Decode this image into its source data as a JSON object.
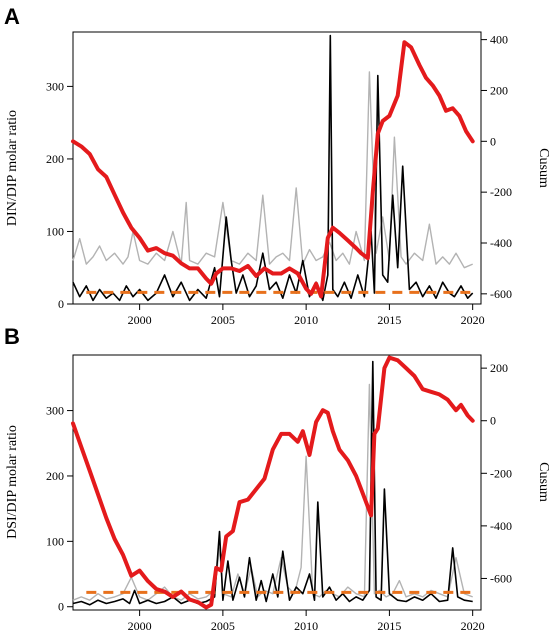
{
  "colors": {
    "cusum": "#e41a1c",
    "ratio_station": "#000000",
    "ratio_alt": "#b3b3b3",
    "redfield": "#e8711c"
  },
  "chart_data": [
    {
      "panel": "A",
      "type": "line",
      "ylabel": "DIN/DIP  molar  ratio",
      "y2label": "Cusum",
      "xlim": [
        1996,
        2020.5
      ],
      "ylim": [
        0,
        375
      ],
      "y2lim": [
        -640,
        430
      ],
      "x_ticks": [
        2000,
        2005,
        2010,
        2015,
        2020
      ],
      "y_ticks": [
        0,
        100,
        200,
        300
      ],
      "y2_ticks": [
        -600,
        -400,
        -200,
        0,
        200,
        400
      ],
      "reference_line": 16,
      "series": [
        {
          "axis": "right",
          "x": [
            1996.0,
            1996.5,
            1997.0,
            1997.5,
            1998.0,
            1998.5,
            1999.0,
            1999.5,
            2000.0,
            2000.5,
            2001.0,
            2001.5,
            2002.0,
            2002.5,
            2003.0,
            2003.5,
            2004.0,
            2004.3,
            2004.6,
            2005.0,
            2005.5,
            2006.0,
            2006.5,
            2007.0,
            2007.5,
            2008.0,
            2008.5,
            2009.0,
            2009.5,
            2010.0,
            2010.3,
            2010.6,
            2010.9,
            2011.3,
            2011.6,
            2012.0,
            2012.5,
            2013.0,
            2013.3,
            2013.7,
            2014.0,
            2014.3,
            2014.6,
            2015.0,
            2015.5,
            2015.9,
            2016.3,
            2016.8,
            2017.2,
            2017.6,
            2018.0,
            2018.4,
            2018.8,
            2019.2,
            2019.6,
            2020.0
          ],
          "y": [
            0,
            -20,
            -50,
            -110,
            -140,
            -210,
            -280,
            -340,
            -380,
            -430,
            -420,
            -440,
            -450,
            -480,
            -500,
            -500,
            -540,
            -560,
            -520,
            -500,
            -500,
            -510,
            -490,
            -530,
            -500,
            -520,
            -520,
            -500,
            -520,
            -580,
            -600,
            -560,
            -610,
            -380,
            -340,
            -360,
            -390,
            -420,
            -440,
            -460,
            -200,
            30,
            80,
            100,
            180,
            390,
            370,
            300,
            250,
            220,
            180,
            120,
            130,
            100,
            40,
            0
          ]
        },
        {
          "axis": "left",
          "x": [
            1996.0,
            1996.4,
            1996.8,
            1997.2,
            1997.6,
            1998.0,
            1998.4,
            1998.8,
            1999.2,
            1999.6,
            2000.0,
            2000.5,
            2001.0,
            2001.5,
            2002.0,
            2002.5,
            2003.0,
            2003.5,
            2004.0,
            2004.5,
            2004.8,
            2005.2,
            2005.5,
            2005.8,
            2006.2,
            2006.6,
            2007.0,
            2007.4,
            2007.8,
            2008.2,
            2008.6,
            2009.0,
            2009.4,
            2009.8,
            2010.2,
            2010.6,
            2011.0,
            2011.3,
            2011.45,
            2011.6,
            2011.9,
            2012.3,
            2012.7,
            2013.1,
            2013.5,
            2013.9,
            2014.1,
            2014.3,
            2014.6,
            2014.9,
            2015.2,
            2015.5,
            2015.8,
            2016.2,
            2016.6,
            2017.0,
            2017.4,
            2017.8,
            2018.2,
            2018.6,
            2018.9,
            2019.3,
            2019.7,
            2020.0
          ],
          "y": [
            30,
            10,
            25,
            5,
            20,
            8,
            15,
            5,
            25,
            10,
            20,
            5,
            15,
            40,
            10,
            30,
            5,
            20,
            8,
            50,
            10,
            120,
            60,
            15,
            40,
            10,
            25,
            70,
            20,
            30,
            8,
            40,
            15,
            60,
            10,
            30,
            5,
            40,
            370,
            20,
            10,
            30,
            8,
            40,
            10,
            100,
            15,
            315,
            40,
            30,
            150,
            50,
            190,
            20,
            30,
            10,
            25,
            8,
            30,
            15,
            10,
            25,
            8,
            15
          ]
        },
        {
          "axis": "left",
          "x": [
            1996.0,
            1996.4,
            1996.8,
            1997.2,
            1997.6,
            1998.0,
            1998.5,
            1999.0,
            1999.3,
            1999.6,
            2000.0,
            2000.5,
            2001.0,
            2001.5,
            2002.0,
            2002.5,
            2002.8,
            2003.0,
            2003.5,
            2004.0,
            2004.5,
            2005.0,
            2005.5,
            2006.0,
            2006.5,
            2007.0,
            2007.4,
            2007.8,
            2008.2,
            2008.6,
            2009.0,
            2009.4,
            2009.8,
            2010.2,
            2010.6,
            2011.0,
            2011.4,
            2011.8,
            2012.2,
            2012.6,
            2013.0,
            2013.5,
            2013.8,
            2014.2,
            2014.6,
            2015.0,
            2015.3,
            2015.7,
            2016.0,
            2016.5,
            2017.0,
            2017.4,
            2017.8,
            2018.2,
            2018.6,
            2019.0,
            2019.5,
            2020.0
          ],
          "y": [
            60,
            90,
            55,
            65,
            80,
            60,
            70,
            55,
            65,
            100,
            60,
            55,
            70,
            60,
            100,
            55,
            140,
            60,
            55,
            70,
            65,
            140,
            60,
            55,
            70,
            60,
            150,
            55,
            65,
            70,
            60,
            160,
            55,
            75,
            60,
            65,
            85,
            60,
            70,
            55,
            100,
            60,
            320,
            70,
            120,
            60,
            230,
            65,
            55,
            70,
            60,
            110,
            55,
            65,
            55,
            70,
            50,
            55
          ]
        }
      ]
    },
    {
      "panel": "B",
      "type": "line",
      "ylabel": "DSI/DIP  molar  ratio",
      "y2label": "Cusum",
      "xlim": [
        1996,
        2020.5
      ],
      "ylim": [
        -5,
        385
      ],
      "y2lim": [
        -720,
        250
      ],
      "x_ticks": [
        2000,
        2005,
        2010,
        2015,
        2020
      ],
      "y_ticks": [
        0,
        100,
        200,
        300
      ],
      "y2_ticks": [
        -600,
        -400,
        -200,
        0,
        200
      ],
      "reference_line": 22,
      "series": [
        {
          "axis": "right",
          "x": [
            1996.0,
            1996.5,
            1997.0,
            1997.5,
            1998.0,
            1998.5,
            1999.0,
            1999.5,
            2000.0,
            2000.5,
            2001.0,
            2001.5,
            2002.0,
            2002.5,
            2003.0,
            2003.5,
            2004.0,
            2004.3,
            2004.6,
            2004.9,
            2005.2,
            2005.6,
            2006.0,
            2006.5,
            2007.0,
            2007.5,
            2008.0,
            2008.5,
            2009.0,
            2009.5,
            2009.8,
            2010.2,
            2010.6,
            2011.0,
            2011.3,
            2011.6,
            2012.0,
            2012.5,
            2013.0,
            2013.3,
            2013.6,
            2013.9,
            2014.1,
            2014.3,
            2014.7,
            2015.0,
            2015.5,
            2016.0,
            2016.5,
            2017.0,
            2017.5,
            2018.0,
            2018.5,
            2019.0,
            2019.3,
            2019.7,
            2020.0
          ],
          "y": [
            -10,
            -100,
            -190,
            -280,
            -370,
            -450,
            -510,
            -590,
            -570,
            -610,
            -640,
            -650,
            -670,
            -650,
            -680,
            -690,
            -710,
            -700,
            -560,
            -570,
            -440,
            -420,
            -310,
            -300,
            -260,
            -220,
            -110,
            -50,
            -50,
            -80,
            -40,
            -130,
            -5,
            40,
            30,
            -40,
            -110,
            -150,
            -210,
            -260,
            -310,
            -360,
            -50,
            -30,
            200,
            240,
            230,
            200,
            170,
            120,
            110,
            100,
            80,
            40,
            60,
            20,
            0
          ]
        },
        {
          "axis": "left",
          "x": [
            1996.0,
            1996.5,
            1997.0,
            1997.5,
            1998.0,
            1998.5,
            1999.0,
            1999.4,
            1999.7,
            2000.0,
            2000.5,
            2001.0,
            2001.5,
            2002.0,
            2002.5,
            2003.0,
            2003.5,
            2004.0,
            2004.5,
            2004.8,
            2005.0,
            2005.3,
            2005.6,
            2006.0,
            2006.3,
            2006.6,
            2007.0,
            2007.3,
            2007.6,
            2008.0,
            2008.3,
            2008.6,
            2009.0,
            2009.4,
            2009.8,
            2010.2,
            2010.5,
            2010.7,
            2011.0,
            2011.4,
            2011.8,
            2012.2,
            2012.6,
            2013.0,
            2013.4,
            2013.8,
            2014.0,
            2014.2,
            2014.5,
            2014.7,
            2015.0,
            2015.5,
            2016.0,
            2016.5,
            2017.0,
            2017.5,
            2018.0,
            2018.5,
            2018.8,
            2019.1,
            2019.5,
            2020.0
          ],
          "y": [
            5,
            8,
            3,
            10,
            5,
            8,
            12,
            5,
            25,
            5,
            10,
            5,
            8,
            15,
            5,
            10,
            5,
            8,
            15,
            115,
            10,
            70,
            10,
            45,
            15,
            75,
            10,
            40,
            8,
            50,
            15,
            85,
            10,
            30,
            20,
            50,
            10,
            160,
            15,
            30,
            10,
            20,
            8,
            15,
            10,
            25,
            375,
            15,
            10,
            180,
            20,
            10,
            8,
            15,
            10,
            20,
            8,
            10,
            90,
            15,
            10,
            8
          ]
        },
        {
          "axis": "left",
          "x": [
            1996.0,
            1996.5,
            1997.0,
            1997.5,
            1998.0,
            1998.5,
            1999.0,
            1999.5,
            2000.0,
            2000.5,
            2001.0,
            2001.5,
            2002.0,
            2002.5,
            2003.0,
            2003.5,
            2004.0,
            2004.5,
            2004.8,
            2005.0,
            2005.5,
            2005.9,
            2006.3,
            2006.7,
            2007.1,
            2007.5,
            2008.0,
            2008.5,
            2008.9,
            2009.3,
            2009.7,
            2010.0,
            2010.4,
            2010.8,
            2011.2,
            2011.6,
            2012.0,
            2012.5,
            2013.0,
            2013.5,
            2013.8,
            2014.1,
            2014.4,
            2014.8,
            2015.2,
            2015.6,
            2016.0,
            2016.5,
            2017.0,
            2017.5,
            2018.0,
            2018.5,
            2019.0,
            2019.5,
            2020.0
          ],
          "y": [
            10,
            15,
            10,
            20,
            12,
            15,
            20,
            45,
            15,
            10,
            20,
            30,
            15,
            10,
            20,
            12,
            15,
            25,
            90,
            20,
            15,
            50,
            20,
            60,
            15,
            25,
            20,
            75,
            30,
            20,
            60,
            230,
            20,
            15,
            25,
            20,
            15,
            30,
            20,
            15,
            340,
            20,
            25,
            15,
            20,
            40,
            15,
            20,
            15,
            25,
            20,
            15,
            75,
            20,
            15
          ]
        }
      ]
    }
  ]
}
